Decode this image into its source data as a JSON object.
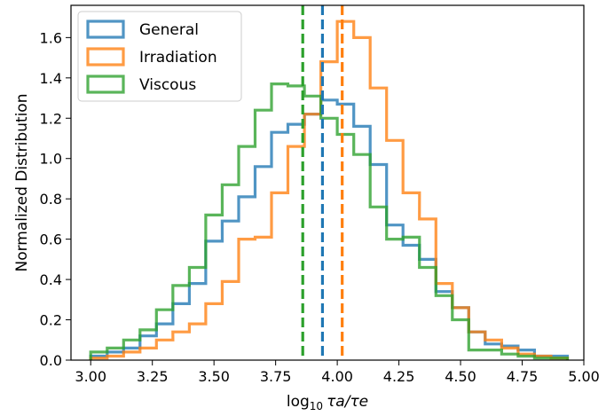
{
  "chart_data": {
    "type": "histogram",
    "xlabel_base": "log",
    "xlabel_sub": "10",
    "xlabel_expr": "τa/τe",
    "ylabel": "Normalized Distribution",
    "xlim": [
      2.92,
      5.0
    ],
    "ylim": [
      0.0,
      1.76
    ],
    "xticks": [
      3.0,
      3.25,
      3.5,
      3.75,
      4.0,
      4.25,
      4.5,
      4.75,
      5.0
    ],
    "xtick_labels": [
      "3.00",
      "3.25",
      "3.50",
      "3.75",
      "4.00",
      "4.25",
      "4.50",
      "4.75",
      "5.00"
    ],
    "yticks": [
      0.0,
      0.2,
      0.4,
      0.6,
      0.8,
      1.0,
      1.2,
      1.4,
      1.6
    ],
    "ytick_labels": [
      "0.0",
      "0.2",
      "0.4",
      "0.6",
      "0.8",
      "1.0",
      "1.2",
      "1.4",
      "1.6"
    ],
    "grid": false,
    "legend_position": "top-left",
    "bin_edges": [
      3.0,
      3.0667,
      3.1333,
      3.2,
      3.2667,
      3.3333,
      3.4,
      3.4667,
      3.5333,
      3.6,
      3.6667,
      3.7333,
      3.8,
      3.8667,
      3.9333,
      4.0,
      4.0667,
      4.1333,
      4.2,
      4.2667,
      4.3333,
      4.4,
      4.4667,
      4.5333,
      4.6,
      4.6667,
      4.7333,
      4.8,
      4.8667,
      4.9333
    ],
    "series": [
      {
        "name": "General",
        "color": "#1f77b4",
        "values": [
          0.02,
          0.04,
          0.06,
          0.12,
          0.18,
          0.28,
          0.38,
          0.59,
          0.69,
          0.81,
          0.96,
          1.13,
          1.17,
          1.22,
          1.29,
          1.27,
          1.16,
          0.97,
          0.67,
          0.57,
          0.5,
          0.34,
          0.26,
          0.14,
          0.08,
          0.07,
          0.05,
          0.02,
          0.02
        ],
        "median": 3.94
      },
      {
        "name": "Irradiation",
        "color": "#ff7f0e",
        "values": [
          0.01,
          0.02,
          0.04,
          0.06,
          0.1,
          0.14,
          0.18,
          0.28,
          0.39,
          0.6,
          0.61,
          0.83,
          1.06,
          1.22,
          1.48,
          1.68,
          1.6,
          1.35,
          1.09,
          0.83,
          0.7,
          0.38,
          0.26,
          0.14,
          0.1,
          0.06,
          0.03,
          0.02,
          0.01
        ],
        "median": 4.02
      },
      {
        "name": "Viscous",
        "color": "#2ca02c",
        "values": [
          0.04,
          0.06,
          0.1,
          0.15,
          0.25,
          0.37,
          0.46,
          0.72,
          0.87,
          1.06,
          1.24,
          1.37,
          1.36,
          1.31,
          1.2,
          1.12,
          1.02,
          0.76,
          0.6,
          0.61,
          0.46,
          0.32,
          0.2,
          0.05,
          0.05,
          0.03,
          0.02,
          0.01,
          0.01
        ],
        "median": 3.86
      }
    ]
  }
}
